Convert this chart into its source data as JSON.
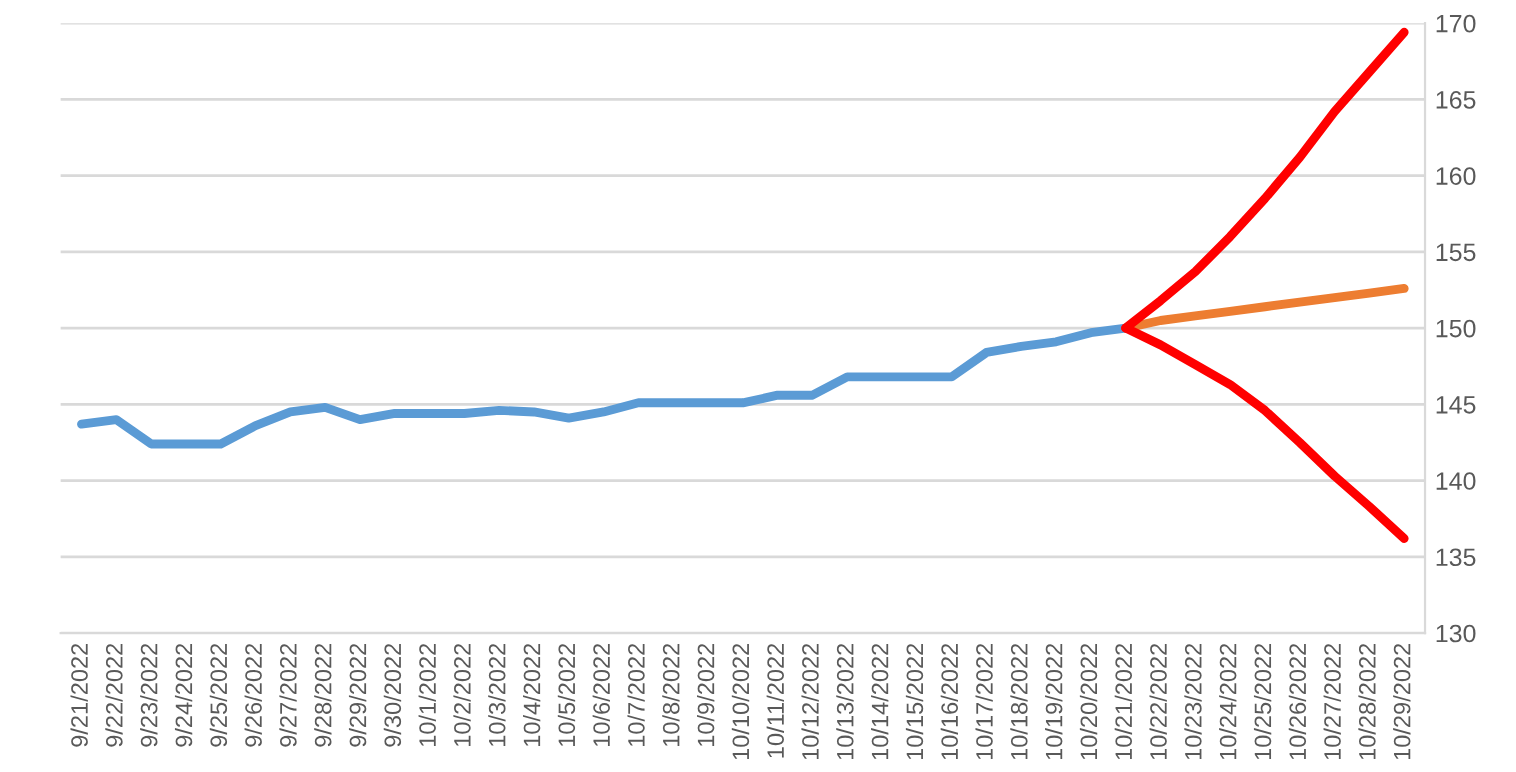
{
  "chart_data": {
    "type": "line",
    "categories": [
      "9/21/2022",
      "9/22/2022",
      "9/23/2022",
      "9/24/2022",
      "9/25/2022",
      "9/26/2022",
      "9/27/2022",
      "9/28/2022",
      "9/29/2022",
      "9/30/2022",
      "10/1/2022",
      "10/2/2022",
      "10/3/2022",
      "10/4/2022",
      "10/5/2022",
      "10/6/2022",
      "10/7/2022",
      "10/8/2022",
      "10/9/2022",
      "10/10/2022",
      "10/11/2022",
      "10/12/2022",
      "10/13/2022",
      "10/14/2022",
      "10/15/2022",
      "10/16/2022",
      "10/17/2022",
      "10/18/2022",
      "10/19/2022",
      "10/20/2022",
      "10/21/2022",
      "10/22/2022",
      "10/23/2022",
      "10/24/2022",
      "10/25/2022",
      "10/26/2022",
      "10/27/2022",
      "10/28/2022",
      "10/29/2022"
    ],
    "series": [
      {
        "color": "#5b9bd5",
        "values": [
          143.7,
          144.0,
          142.4,
          142.4,
          142.4,
          143.6,
          144.5,
          144.8,
          144.0,
          144.4,
          144.4,
          144.4,
          144.6,
          144.5,
          144.1,
          144.5,
          145.1,
          145.1,
          145.1,
          145.1,
          145.6,
          145.6,
          146.8,
          146.8,
          146.8,
          146.8,
          148.4,
          148.8,
          149.1,
          149.7,
          150.0,
          null,
          null,
          null,
          null,
          null,
          null,
          null,
          null
        ]
      },
      {
        "color": "#ed7d31",
        "values": [
          null,
          null,
          null,
          null,
          null,
          null,
          null,
          null,
          null,
          null,
          null,
          null,
          null,
          null,
          null,
          null,
          null,
          null,
          null,
          null,
          null,
          null,
          null,
          null,
          null,
          null,
          null,
          null,
          null,
          null,
          150.0,
          150.5,
          150.8,
          151.1,
          151.4,
          151.7,
          152.0,
          152.3,
          152.6
        ]
      },
      {
        "color": "#ff0000",
        "values": [
          null,
          null,
          null,
          null,
          null,
          null,
          null,
          null,
          null,
          null,
          null,
          null,
          null,
          null,
          null,
          null,
          null,
          null,
          null,
          null,
          null,
          null,
          null,
          null,
          null,
          null,
          null,
          null,
          null,
          null,
          150.0,
          151.8,
          153.7,
          156.0,
          158.5,
          161.2,
          164.2,
          166.8,
          169.4
        ]
      },
      {
        "color": "#ff0000",
        "values": [
          null,
          null,
          null,
          null,
          null,
          null,
          null,
          null,
          null,
          null,
          null,
          null,
          null,
          null,
          null,
          null,
          null,
          null,
          null,
          null,
          null,
          null,
          null,
          null,
          null,
          null,
          null,
          null,
          null,
          null,
          150.0,
          148.9,
          147.6,
          146.3,
          144.6,
          142.5,
          140.3,
          138.3,
          136.2
        ]
      }
    ],
    "ylim": [
      130,
      170
    ],
    "yticks": [
      130,
      135,
      140,
      145,
      150,
      155,
      160,
      165,
      170
    ],
    "grid": "y",
    "marker": "none",
    "line_style": "solid"
  }
}
